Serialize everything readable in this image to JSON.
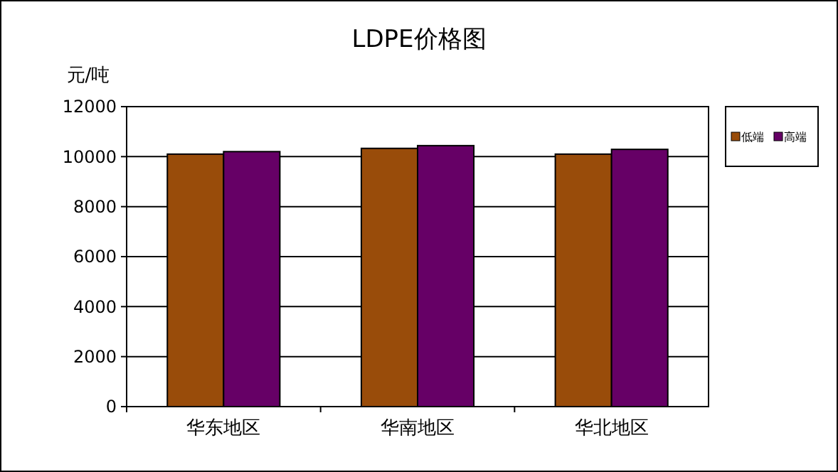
{
  "chart_data": {
    "type": "bar",
    "title": "LDPE价格图",
    "ylabel": "元/吨",
    "categories": [
      "华东地区",
      "华南地区",
      "华北地区"
    ],
    "series": [
      {
        "name": "低端",
        "color": "#994c0a",
        "values": [
          10100,
          10330,
          10100
        ]
      },
      {
        "name": "高端",
        "color": "#660066",
        "values": [
          10200,
          10440,
          10290
        ]
      }
    ],
    "ylim": [
      0,
      12000
    ],
    "yticks": [
      0,
      2000,
      4000,
      6000,
      8000,
      10000,
      12000
    ],
    "grid": "y",
    "legend": "right"
  }
}
